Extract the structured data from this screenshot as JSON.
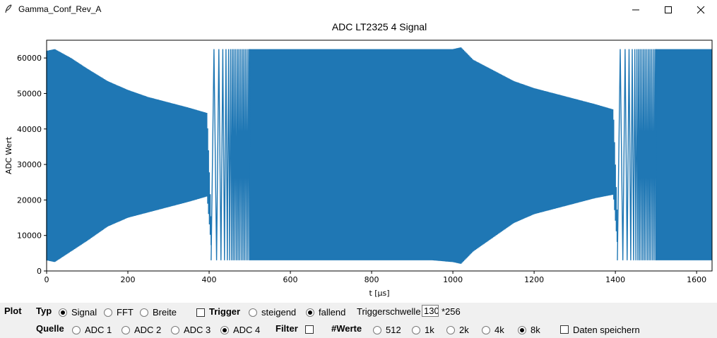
{
  "window": {
    "title": "Gamma_Conf_Rev_A",
    "controls": [
      "minimize-icon",
      "maximize-icon",
      "close-icon"
    ]
  },
  "plot": {
    "chart_data": {
      "type": "line",
      "title": "ADC LT2325 4 Signal",
      "xlabel": "t [μs]",
      "ylabel": "ADC Wert",
      "xlim": [
        0,
        1638
      ],
      "ylim": [
        0,
        65000
      ],
      "xticks": [
        0,
        200,
        400,
        600,
        800,
        1000,
        1200,
        1400,
        1600
      ],
      "yticks": [
        0,
        10000,
        20000,
        30000,
        40000,
        50000,
        60000
      ],
      "xtick_labels": [
        "0",
        "200",
        "400",
        "600",
        "800",
        "1000",
        "1200",
        "1400",
        "1600"
      ],
      "ytick_labels": [
        "0",
        "10000",
        "20000",
        "30000",
        "40000",
        "50000",
        "60000"
      ],
      "grid": false,
      "series": [
        {
          "color": "#1f77b4",
          "description": "high-frequency oscillating signal; envelope values",
          "upper_envelope": {
            "x": [
              0,
              20,
              60,
              100,
              150,
              200,
              250,
              300,
              350,
              395,
              410,
              430,
              500,
              600,
              700,
              800,
              900,
              950,
              1000,
              1020,
              1050,
              1100,
              1150,
              1200,
              1250,
              1300,
              1350,
              1395,
              1410,
              1430,
              1500,
              1600,
              1638
            ],
            "y": [
              62000,
              62500,
              60000,
              57000,
              53500,
              51000,
              49000,
              47500,
              46000,
              44500,
              0,
              62500,
              62500,
              62500,
              62500,
              62500,
              62500,
              62500,
              62500,
              63000,
              59500,
              56500,
              53500,
              51500,
              50000,
              48500,
              47000,
              45500,
              0,
              62500,
              62500,
              62500,
              62500
            ]
          },
          "lower_envelope": {
            "x": [
              0,
              20,
              60,
              100,
              150,
              200,
              250,
              300,
              350,
              395,
              410,
              430,
              500,
              600,
              700,
              800,
              900,
              950,
              1000,
              1020,
              1050,
              1100,
              1150,
              1200,
              1250,
              1300,
              1350,
              1395,
              1410,
              1430,
              1500,
              1600,
              1638
            ],
            "y": [
              3000,
              2500,
              5500,
              8500,
              12500,
              15000,
              16500,
              18000,
              19500,
              21000,
              0,
              3000,
              3000,
              3000,
              3000,
              3000,
              3000,
              3000,
              2500,
              2000,
              5500,
              9500,
              13500,
              16000,
              17500,
              19000,
              20500,
              21500,
              0,
              3000,
              3000,
              3000,
              3000
            ]
          },
          "sweep_regions": [
            {
              "x_start": 405,
              "x_end": 500,
              "min": 3000,
              "max": 62500
            },
            {
              "x_start": 1405,
              "x_end": 1500,
              "min": 3000,
              "max": 62500
            }
          ]
        }
      ]
    }
  },
  "controls": {
    "plot_label": "Plot",
    "typ_label": "Typ",
    "typ_options": [
      "Signal",
      "FFT",
      "Breite"
    ],
    "typ_selected": "Signal",
    "trigger_label": "Trigger",
    "trigger_checked": false,
    "trigger_options": [
      "steigend",
      "fallend"
    ],
    "trigger_selected": "fallend",
    "threshold_label": "Triggerschwelle",
    "threshold_value": "130",
    "threshold_suffix": "*256",
    "quelle_label": "Quelle",
    "quelle_options": [
      "ADC 1",
      "ADC 2",
      "ADC 3",
      "ADC 4"
    ],
    "quelle_selected": "ADC 4",
    "filter_label": "Filter",
    "filter_checked": false,
    "werte_label": "#Werte",
    "werte_options": [
      "512",
      "1k",
      "2k",
      "4k",
      "8k"
    ],
    "werte_selected": "8k",
    "save_label": "Daten speichern",
    "save_checked": false
  }
}
